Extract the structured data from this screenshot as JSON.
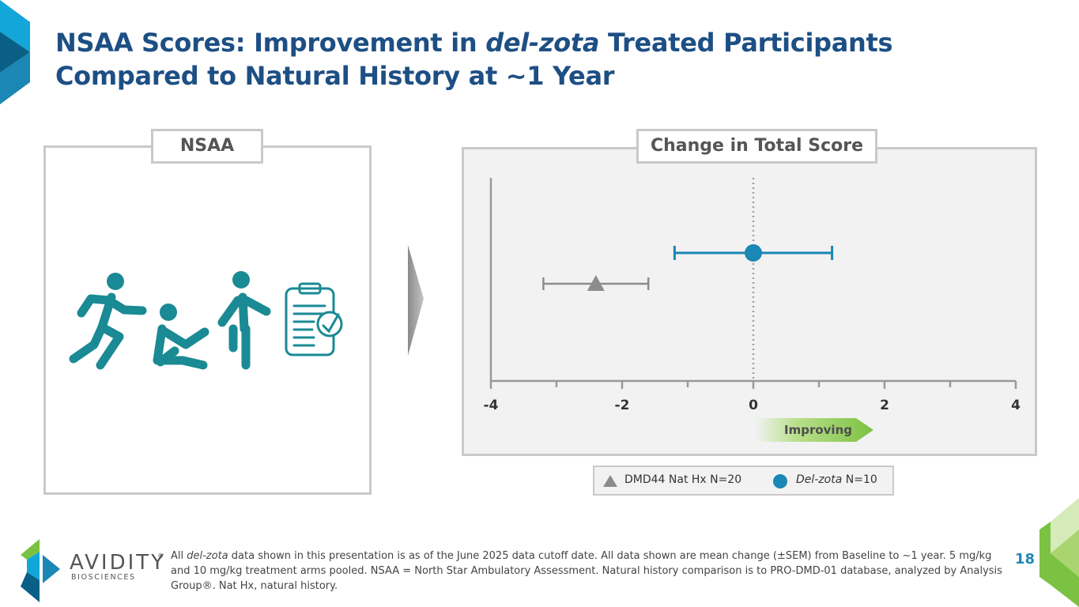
{
  "title": {
    "part1": "NSAA Scores: Improvement in ",
    "italic": "del-zota",
    "part2": " Treated Participants",
    "line2": "Compared to Natural History at ~1 Year"
  },
  "left_panel": {
    "label": "NSAA"
  },
  "right_panel": {
    "label": "Change in Total Score"
  },
  "chart_data": {
    "type": "scatter",
    "title": "Change in Total Score",
    "xlabel": "",
    "ylabel": "",
    "xlim": [
      -4,
      4
    ],
    "x_ticks": [
      -4,
      -2,
      0,
      2,
      4
    ],
    "reference_line": 0,
    "direction_label": "Improving",
    "series": [
      {
        "name": "Del-zota N=10",
        "marker": "circle",
        "color": "#1a87b4",
        "mean": 0.0,
        "ci_low": -1.2,
        "ci_high": 1.2
      },
      {
        "name": "DMD44 Nat Hx N=20",
        "marker": "triangle",
        "color": "#8c8c8c",
        "mean": -2.4,
        "ci_low": -3.2,
        "ci_high": -1.6
      }
    ]
  },
  "legend": {
    "item1": "DMD44 Nat Hx N=20",
    "item2_italic": "Del-zota",
    "item2_rest": " N=10"
  },
  "logo": {
    "name": "AVIDITY",
    "sub": "BIOSCIENCES"
  },
  "footnote": {
    "p1": "All ",
    "italic": "del-zota",
    "p2": " data shown in this presentation is as of the June 2025 data cutoff date. All data shown are mean change (±SEM) from Baseline to ~1 year. 5 mg/kg and 10 mg/kg treatment arms pooled. NSAA = North Star Ambulatory Assessment. Natural history comparison is to PRO-DMD-01 database, analyzed by Analysis Group®. Nat Hx, natural history."
  },
  "page_number": "18",
  "colors": {
    "title": "#1d4f84",
    "teal": "#1a8a94",
    "blue": "#1a87b4",
    "gray": "#8c8c8c",
    "green": "#7cc242"
  }
}
